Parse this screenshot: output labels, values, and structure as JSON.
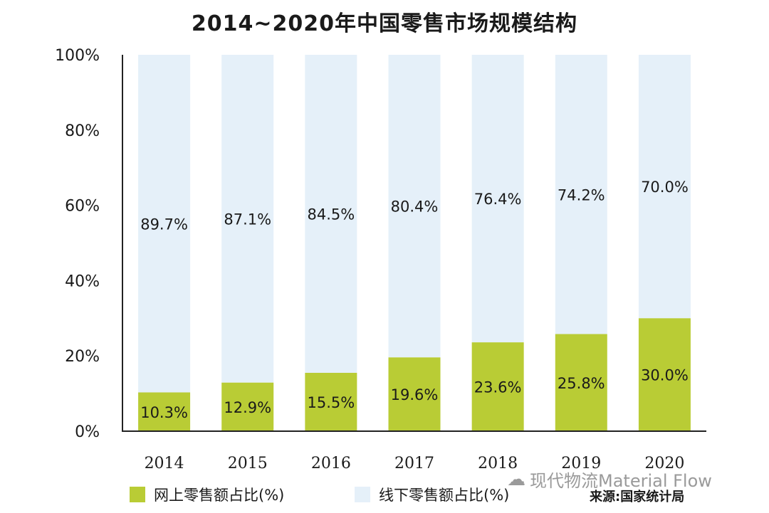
{
  "chart_data": {
    "type": "bar",
    "stacked": true,
    "title": "2014~2020年中国零售市场规模结构",
    "categories": [
      "2014",
      "2015",
      "2016",
      "2017",
      "2018",
      "2019",
      "2020"
    ],
    "series": [
      {
        "name": "网上零售额占比(%)",
        "color": "#b9cc35",
        "values": [
          10.3,
          12.9,
          15.5,
          19.6,
          23.6,
          25.8,
          30.0
        ],
        "labels": [
          "10.3%",
          "12.9%",
          "15.5%",
          "19.6%",
          "23.6%",
          "25.8%",
          "30.0%"
        ]
      },
      {
        "name": "线下零售额占比(%)",
        "color": "#e5f0f9",
        "values": [
          89.7,
          87.1,
          84.5,
          80.4,
          76.4,
          74.2,
          70.0
        ],
        "labels": [
          "89.7%",
          "87.1%",
          "84.5%",
          "80.4%",
          "76.4%",
          "74.2%",
          "70.0%"
        ]
      }
    ],
    "ylim": [
      0,
      100
    ],
    "yticks": [
      "0%",
      "20%",
      "40%",
      "60%",
      "80%",
      "100%"
    ],
    "grid": false,
    "legend_position": "bottom-left"
  },
  "source": "来源:国家统计局",
  "watermark": "现代物流Material Flow",
  "watermark_icon": "wechat-icon"
}
